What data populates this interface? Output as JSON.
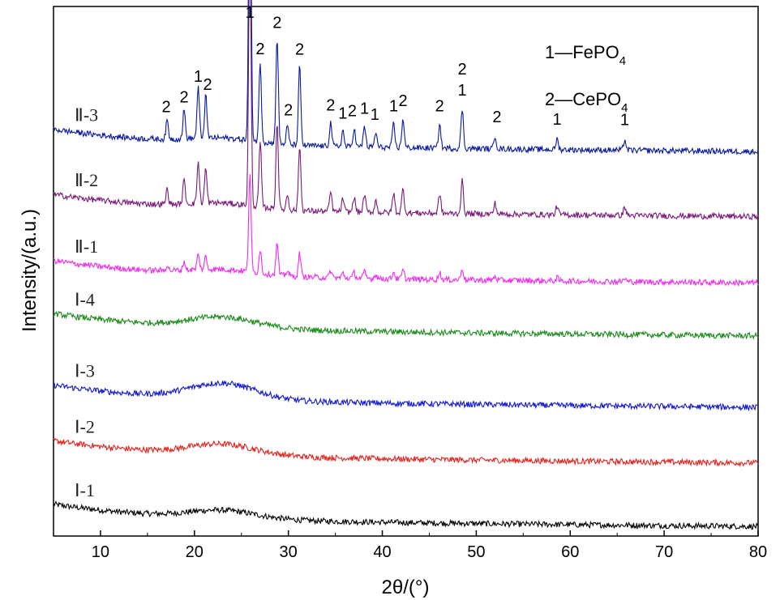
{
  "chart_data": {
    "type": "line",
    "xlabel": "2θ/(°)",
    "ylabel": "Intensity/(a.u.)",
    "xlim": [
      5,
      80
    ],
    "x_ticks": [
      10,
      20,
      30,
      40,
      50,
      60,
      70,
      80
    ],
    "y_tick_labels": false,
    "legend": {
      "placement": "top-right",
      "entries": [
        {
          "prefix": "1—FePO",
          "sub": "4"
        },
        {
          "prefix": "2—CePO",
          "sub": "4"
        }
      ]
    },
    "series": [
      {
        "name": "Ⅰ-1",
        "color": "#000000",
        "baseline": 0.03,
        "hump": 0.015,
        "peak_scale": 0
      },
      {
        "name": "Ⅰ-2",
        "color": "#e8201a",
        "baseline": 0.15,
        "hump": 0.02,
        "peak_scale": 0
      },
      {
        "name": "Ⅰ-3",
        "color": "#1018d8",
        "baseline": 0.255,
        "hump": 0.03,
        "peak_scale": 0
      },
      {
        "name": "Ⅰ-4",
        "color": "#1a8a1a",
        "baseline": 0.39,
        "hump": 0.02,
        "peak_scale": 0
      },
      {
        "name": "Ⅱ-1",
        "color": "#f02af0",
        "baseline": 0.49,
        "hump": 0.01,
        "peak_scale": 0.3
      },
      {
        "name": "Ⅱ-2",
        "color": "#7a1a7a",
        "baseline": 0.615,
        "hump": 0.01,
        "peak_scale": 0.82
      },
      {
        "name": "Ⅱ-3",
        "color": "#0a1aa0",
        "baseline": 0.738,
        "hump": 0.01,
        "peak_scale": 1.0
      }
    ],
    "peaks": [
      {
        "x": 17.1,
        "h": 0.035,
        "phase": "2"
      },
      {
        "x": 18.9,
        "h": 0.055,
        "phase": "2"
      },
      {
        "x": 20.4,
        "h": 0.095,
        "phase": "1"
      },
      {
        "x": 21.2,
        "h": 0.08,
        "phase": "2"
      },
      {
        "x": 25.9,
        "h": 0.62,
        "phase": "1"
      },
      {
        "x": 27.0,
        "h": 0.15,
        "phase": "2"
      },
      {
        "x": 28.8,
        "h": 0.2,
        "phase": "2"
      },
      {
        "x": 29.9,
        "h": 0.035,
        "phase": "2"
      },
      {
        "x": 31.2,
        "h": 0.15,
        "phase": "2"
      },
      {
        "x": 34.5,
        "h": 0.045,
        "phase": "2"
      },
      {
        "x": 35.8,
        "h": 0.03,
        "phase": "1"
      },
      {
        "x": 37.0,
        "h": 0.035,
        "phase": "2"
      },
      {
        "x": 38.1,
        "h": 0.04,
        "phase": "1"
      },
      {
        "x": 39.3,
        "h": 0.028,
        "phase": "1"
      },
      {
        "x": 41.2,
        "h": 0.045,
        "phase": "1"
      },
      {
        "x": 42.2,
        "h": 0.055,
        "phase": "2"
      },
      {
        "x": 46.1,
        "h": 0.045,
        "phase": "2"
      },
      {
        "x": 48.5,
        "h": 0.075,
        "phase": "1"
      },
      {
        "x": 52.0,
        "h": 0.025,
        "phase": "2"
      },
      {
        "x": 58.6,
        "h": 0.02,
        "phase": "1"
      },
      {
        "x": 65.8,
        "h": 0.02,
        "phase": "1"
      }
    ],
    "peak_annotations": [
      {
        "x": 25.9,
        "text": "1"
      },
      {
        "x": 17.0,
        "text": "2"
      },
      {
        "x": 18.9,
        "text": "2"
      },
      {
        "x": 20.4,
        "text": "1"
      },
      {
        "x": 21.4,
        "text": "2"
      },
      {
        "x": 27.0,
        "text": "2"
      },
      {
        "x": 28.8,
        "text": "2"
      },
      {
        "x": 30.0,
        "text": "2"
      },
      {
        "x": 31.2,
        "text": "2"
      },
      {
        "x": 34.5,
        "text": "2"
      },
      {
        "x": 35.8,
        "text": "1"
      },
      {
        "x": 36.8,
        "text": "2"
      },
      {
        "x": 38.1,
        "text": "1"
      },
      {
        "x": 39.2,
        "text": "1"
      },
      {
        "x": 41.2,
        "text": "1"
      },
      {
        "x": 42.2,
        "text": "2"
      },
      {
        "x": 46.1,
        "text": "2"
      },
      {
        "x": 48.5,
        "text": "1"
      },
      {
        "x": 48.5,
        "text": "2"
      },
      {
        "x": 52.2,
        "text": "2"
      },
      {
        "x": 58.6,
        "text": "1"
      },
      {
        "x": 65.8,
        "text": "1"
      }
    ]
  }
}
